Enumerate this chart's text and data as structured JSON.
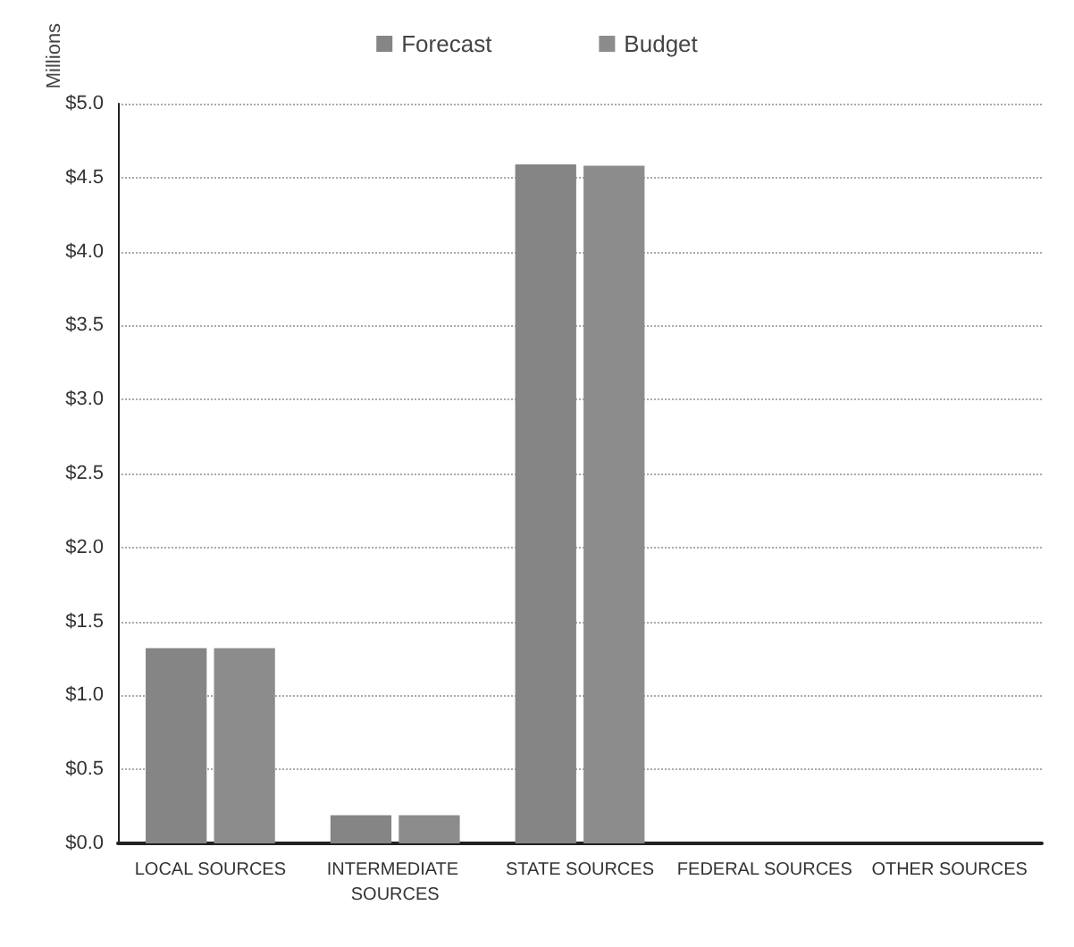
{
  "chart_data": {
    "type": "bar",
    "ylabel": "Millions",
    "categories": [
      "LOCAL SOURCES",
      "INTERMEDIATE SOURCES",
      "STATE SOURCES",
      "FEDERAL SOURCES",
      "OTHER SOURCES"
    ],
    "series": [
      {
        "name": "Forecast",
        "color": "#858585",
        "values": [
          1.32,
          0.19,
          4.59,
          0,
          0
        ]
      },
      {
        "name": "Budget",
        "color": "#8c8c8c",
        "values": [
          1.32,
          0.19,
          4.58,
          0,
          0
        ]
      }
    ],
    "ylim": [
      0,
      5
    ],
    "yticks": [
      {
        "value": 0,
        "label": "$0.0"
      },
      {
        "value": 0.5,
        "label": "$0.5"
      },
      {
        "value": 1,
        "label": "$1.0"
      },
      {
        "value": 1.5,
        "label": "$1.5"
      },
      {
        "value": 2,
        "label": "$2.0"
      },
      {
        "value": 2.5,
        "label": "$2.5"
      },
      {
        "value": 3,
        "label": "$3.0"
      },
      {
        "value": 3.5,
        "label": "$3.5"
      },
      {
        "value": 4,
        "label": "$4.0"
      },
      {
        "value": 4.5,
        "label": "$4.5"
      },
      {
        "value": 5,
        "label": "$5.0"
      }
    ],
    "grid": "y",
    "legend": "top"
  }
}
